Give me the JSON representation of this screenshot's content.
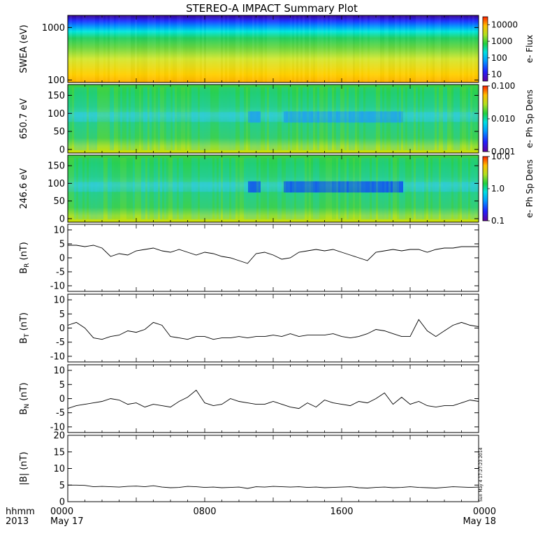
{
  "title": "STEREO-A IMPACT Summary Plot",
  "footer": {
    "hhmm_label": "hhmm",
    "year_label": "2013",
    "x_ticks": [
      {
        "hour": 0,
        "top": "0000",
        "bottom": "May 17"
      },
      {
        "hour": 8,
        "top": "0800",
        "bottom": ""
      },
      {
        "hour": 16,
        "top": "1600",
        "bottom": ""
      },
      {
        "hour": 24,
        "top": "0000",
        "bottom": "May 18"
      }
    ],
    "timestamp": "Sun May  4 17:27:23 2014"
  },
  "chart_data": [
    {
      "type": "heatmap",
      "ylabel": "SWEA (eV)",
      "yscale": "log",
      "ylim": [
        90,
        1700
      ],
      "yticks": [
        {
          "v": 100,
          "label": "100"
        },
        {
          "v": 1000,
          "label": "1000"
        }
      ],
      "colorbar": {
        "label": "e- Flux",
        "scale": "log",
        "range": [
          4,
          30000
        ],
        "ticks": [
          {
            "v": 10,
            "label": "10"
          },
          {
            "v": 100,
            "label": "100"
          },
          {
            "v": 1000,
            "label": "1000"
          },
          {
            "v": 10000,
            "label": "10000"
          }
        ]
      }
    },
    {
      "type": "heatmap",
      "ylabel": "650.7 eV",
      "ylim": [
        -10,
        180
      ],
      "yticks": [
        {
          "v": 0,
          "label": "0"
        },
        {
          "v": 50,
          "label": "50"
        },
        {
          "v": 100,
          "label": "100"
        },
        {
          "v": 150,
          "label": "150"
        }
      ],
      "colorbar": {
        "label": "e- Ph Sp Dens",
        "scale": "log",
        "range": [
          0.001,
          0.1
        ],
        "ticks": [
          {
            "v": 0.001,
            "label": "0.001"
          },
          {
            "v": 0.01,
            "label": "0.010"
          },
          {
            "v": 0.1,
            "label": "0.100"
          }
        ]
      }
    },
    {
      "type": "heatmap",
      "ylabel": "246.6 eV",
      "ylim": [
        -10,
        180
      ],
      "yticks": [
        {
          "v": 0,
          "label": "0"
        },
        {
          "v": 50,
          "label": "50"
        },
        {
          "v": 100,
          "label": "100"
        },
        {
          "v": 150,
          "label": "150"
        }
      ],
      "colorbar": {
        "label": "e- Ph Sp Dens",
        "scale": "log",
        "range": [
          0.1,
          10
        ],
        "ticks": [
          {
            "v": 0.1,
            "label": "0.1"
          },
          {
            "v": 1,
            "label": "1.0"
          },
          {
            "v": 10,
            "label": "10.0"
          }
        ]
      }
    },
    {
      "type": "line",
      "ylabel": "B_R (nT)",
      "ylim": [
        -12,
        12
      ],
      "yticks": [
        {
          "v": -10,
          "label": "-10"
        },
        {
          "v": -5,
          "label": "-5"
        },
        {
          "v": 0,
          "label": "0"
        },
        {
          "v": 5,
          "label": "5"
        },
        {
          "v": 10,
          "label": "10"
        }
      ],
      "x": [
        0,
        0.5,
        1,
        1.5,
        2,
        2.5,
        3,
        3.5,
        4,
        4.5,
        5,
        5.5,
        6,
        6.5,
        7,
        7.5,
        8,
        8.5,
        9,
        9.5,
        10,
        10.5,
        11,
        11.5,
        12,
        12.5,
        13,
        13.5,
        14,
        14.5,
        15,
        15.5,
        16,
        16.5,
        17,
        17.5,
        18,
        18.5,
        19,
        19.5,
        20,
        20.5,
        21,
        21.5,
        22,
        22.5,
        23,
        23.5,
        24
      ],
      "y": [
        4.5,
        4.5,
        4,
        4.5,
        3.5,
        0.5,
        1.5,
        1,
        2.5,
        3,
        3.5,
        2.5,
        2,
        3,
        2,
        1,
        2,
        1.5,
        0.5,
        0,
        -1,
        -2,
        1.5,
        2,
        1,
        -0.5,
        0,
        2,
        2.5,
        3,
        2.5,
        3,
        2,
        1,
        0,
        -1,
        2,
        2.5,
        3,
        2.5,
        3,
        3,
        2,
        3,
        3.5,
        3.5,
        4,
        4,
        4
      ]
    },
    {
      "type": "line",
      "ylabel": "B_T (nT)",
      "ylim": [
        -12,
        12
      ],
      "yticks": [
        {
          "v": -10,
          "label": "-10"
        },
        {
          "v": -5,
          "label": "-5"
        },
        {
          "v": 0,
          "label": "0"
        },
        {
          "v": 5,
          "label": "5"
        },
        {
          "v": 10,
          "label": "10"
        }
      ],
      "x": [
        0,
        0.5,
        1,
        1.5,
        2,
        2.5,
        3,
        3.5,
        4,
        4.5,
        5,
        5.5,
        6,
        6.5,
        7,
        7.5,
        8,
        8.5,
        9,
        9.5,
        10,
        10.5,
        11,
        11.5,
        12,
        12.5,
        13,
        13.5,
        14,
        14.5,
        15,
        15.5,
        16,
        16.5,
        17,
        17.5,
        18,
        18.5,
        19,
        19.5,
        20,
        20.5,
        21,
        21.5,
        22,
        22.5,
        23,
        23.5,
        24
      ],
      "y": [
        1,
        2,
        0,
        -3.5,
        -4,
        -3,
        -2.5,
        -1,
        -1.5,
        -0.5,
        2,
        1,
        -3,
        -3.5,
        -4,
        -3,
        -3,
        -4,
        -3.5,
        -3.5,
        -3,
        -3.5,
        -3,
        -3,
        -2.5,
        -3,
        -2,
        -3,
        -2.5,
        -2.5,
        -2.5,
        -2,
        -3,
        -3.5,
        -3,
        -2,
        -0.5,
        -1,
        -2,
        -3,
        -3,
        3,
        -1,
        -3,
        -1,
        1,
        2,
        1,
        0.5
      ]
    },
    {
      "type": "line",
      "ylabel": "B_N (nT)",
      "ylim": [
        -12,
        12
      ],
      "yticks": [
        {
          "v": -10,
          "label": "-10"
        },
        {
          "v": -5,
          "label": "-5"
        },
        {
          "v": 0,
          "label": "0"
        },
        {
          "v": 5,
          "label": "5"
        },
        {
          "v": 10,
          "label": "10"
        }
      ],
      "x": [
        0,
        0.5,
        1,
        1.5,
        2,
        2.5,
        3,
        3.5,
        4,
        4.5,
        5,
        5.5,
        6,
        6.5,
        7,
        7.5,
        8,
        8.5,
        9,
        9.5,
        10,
        10.5,
        11,
        11.5,
        12,
        12.5,
        13,
        13.5,
        14,
        14.5,
        15,
        15.5,
        16,
        16.5,
        17,
        17.5,
        18,
        18.5,
        19,
        19.5,
        20,
        20.5,
        21,
        21.5,
        22,
        22.5,
        23,
        23.5,
        24
      ],
      "y": [
        -3.5,
        -2.5,
        -2,
        -1.5,
        -1,
        0,
        -0.5,
        -2,
        -1.5,
        -3,
        -2,
        -2.5,
        -3,
        -1,
        0.5,
        3,
        -1.5,
        -2.5,
        -2,
        0,
        -1,
        -1.5,
        -2,
        -2,
        -1,
        -2,
        -3,
        -3.5,
        -1.5,
        -3,
        -0.5,
        -1.5,
        -2,
        -2.5,
        -1,
        -1.5,
        0,
        2,
        -2,
        0.5,
        -2,
        -1,
        -2.5,
        -3,
        -2.5,
        -2.5,
        -1.5,
        -0.5,
        -1
      ]
    },
    {
      "type": "line",
      "ylabel": "|B| (nT)",
      "ylim": [
        0,
        20
      ],
      "yticks": [
        {
          "v": 0,
          "label": "0"
        },
        {
          "v": 5,
          "label": "5"
        },
        {
          "v": 10,
          "label": "10"
        },
        {
          "v": 15,
          "label": "15"
        },
        {
          "v": 20,
          "label": "20"
        }
      ],
      "x": [
        0,
        0.5,
        1,
        1.5,
        2,
        2.5,
        3,
        3.5,
        4,
        4.5,
        5,
        5.5,
        6,
        6.5,
        7,
        7.5,
        8,
        8.5,
        9,
        9.5,
        10,
        10.5,
        11,
        11.5,
        12,
        12.5,
        13,
        13.5,
        14,
        14.5,
        15,
        15.5,
        16,
        16.5,
        17,
        17.5,
        18,
        18.5,
        19,
        19.5,
        20,
        20.5,
        21,
        21.5,
        22,
        22.5,
        23,
        23.5,
        24
      ],
      "y": [
        5,
        5,
        4.9,
        4.5,
        4.6,
        4.5,
        4.4,
        4.6,
        4.7,
        4.5,
        4.8,
        4.4,
        4.2,
        4.3,
        4.6,
        4.5,
        4.3,
        4.4,
        4.2,
        4.3,
        4.4,
        4.0,
        4.5,
        4.4,
        4.6,
        4.5,
        4.4,
        4.5,
        4.3,
        4.4,
        4.2,
        4.3,
        4.4,
        4.5,
        4.2,
        4.1,
        4.3,
        4.4,
        4.2,
        4.3,
        4.5,
        4.3,
        4.2,
        4.1,
        4.3,
        4.5,
        4.4,
        4.3,
        4.4
      ]
    }
  ]
}
